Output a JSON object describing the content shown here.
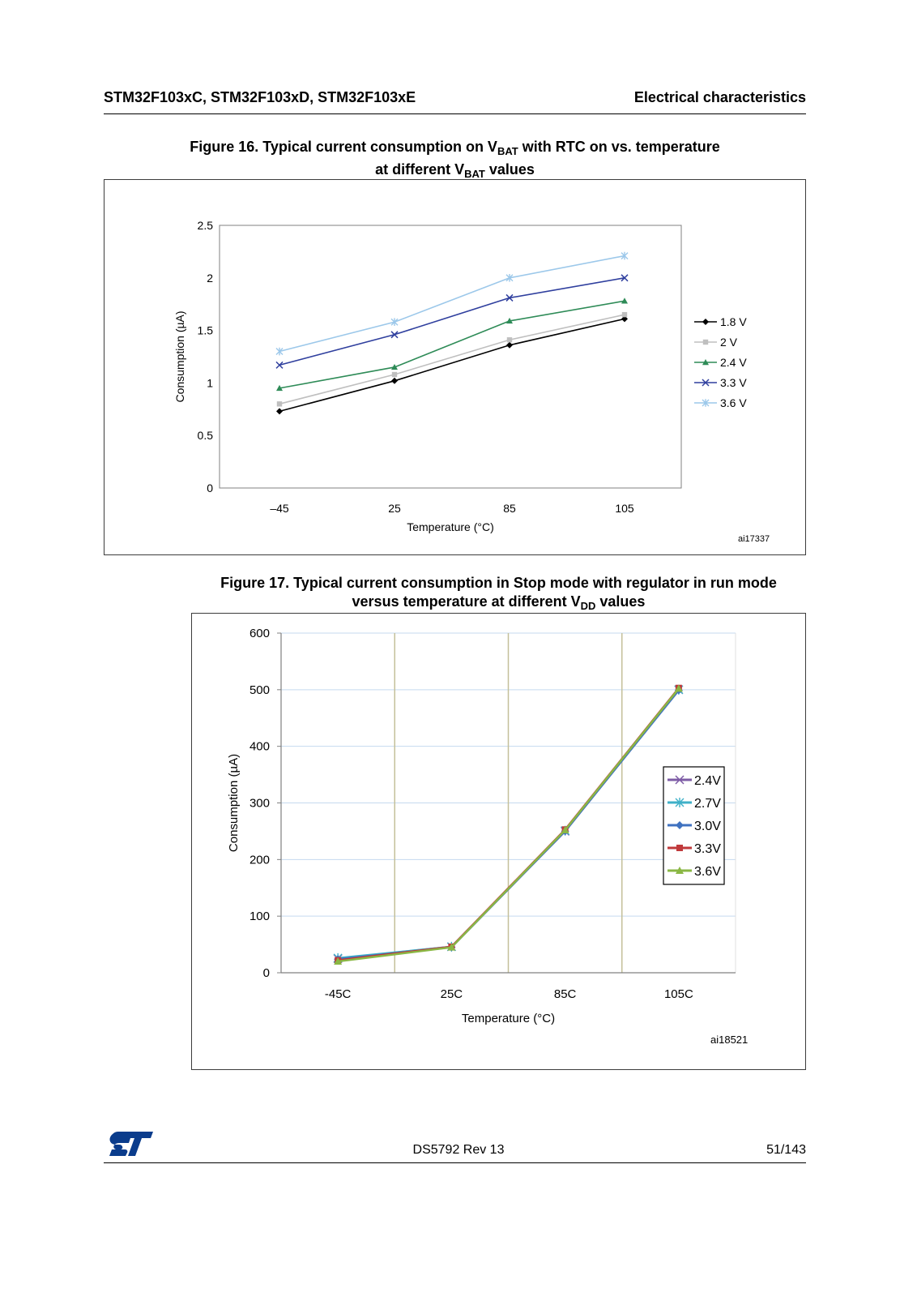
{
  "header": {
    "left": "STM32F103xC, STM32F103xD, STM32F103xE",
    "right": "Electrical characteristics"
  },
  "fig16": {
    "title_line1_a": "Figure 16. Typical current consumption on V",
    "title_line1_sub": "BAT",
    "title_line1_b": " with RTC on vs. temperature",
    "title_line2_a": "at different V",
    "title_line2_sub": "BAT",
    "title_line2_b": " values",
    "ref": "ai17337"
  },
  "fig17": {
    "title_line1": "Figure 17. Typical current consumption in Stop mode with regulator in run mode",
    "title_line2_a": "versus temperature at different V",
    "title_line2_sub": "DD",
    "title_line2_b": " values",
    "ref": "ai18521"
  },
  "chart_data": [
    {
      "type": "line",
      "xlabel": "Temperature (°C)",
      "ylabel": "Consumption (µA)",
      "categories": [
        "–45",
        "25",
        "85",
        "105"
      ],
      "ylim": [
        0,
        2.5
      ],
      "yticks": [
        "0",
        "0.5",
        "1",
        "1.5",
        "2",
        "2.5"
      ],
      "grid": false,
      "legend": "right",
      "series": [
        {
          "name": "1.8 V",
          "values": [
            0.73,
            1.02,
            1.36,
            1.61
          ],
          "color": "#000000",
          "marker": "diamond"
        },
        {
          "name": "2 V",
          "values": [
            0.8,
            1.08,
            1.41,
            1.65
          ],
          "color": "#bfbfbf",
          "marker": "square"
        },
        {
          "name": "2.4 V",
          "values": [
            0.95,
            1.15,
            1.59,
            1.78
          ],
          "color": "#2e8b57",
          "marker": "triangle"
        },
        {
          "name": "3.3 V",
          "values": [
            1.17,
            1.46,
            1.81,
            2.0
          ],
          "color": "#2f3f9e",
          "marker": "x"
        },
        {
          "name": "3.6 V",
          "values": [
            1.3,
            1.58,
            2.0,
            2.21
          ],
          "color": "#9cc8ea",
          "marker": "star"
        }
      ]
    },
    {
      "type": "line",
      "xlabel": "Temperature (°C)",
      "ylabel": "Consumption (µA)",
      "categories": [
        "-45C",
        "25C",
        "85C",
        "105C"
      ],
      "ylim": [
        0,
        600
      ],
      "yticks": [
        "0",
        "100",
        "200",
        "300",
        "400",
        "500",
        "600"
      ],
      "grid": true,
      "legend": "right",
      "series": [
        {
          "name": "2.4V",
          "values": [
            25,
            46,
            250,
            500
          ],
          "color": "#7e5ca6",
          "marker": "x"
        },
        {
          "name": "2.7V",
          "values": [
            26,
            46,
            251,
            500
          ],
          "color": "#3fb0c8",
          "marker": "star"
        },
        {
          "name": "3.0V",
          "values": [
            24,
            45,
            250,
            499
          ],
          "color": "#3f72c0",
          "marker": "diamond"
        },
        {
          "name": "3.3V",
          "values": [
            22,
            46,
            253,
            503
          ],
          "color": "#c0393b",
          "marker": "square"
        },
        {
          "name": "3.6V",
          "values": [
            20,
            45,
            252,
            502
          ],
          "color": "#8ab744",
          "marker": "triangle"
        }
      ]
    }
  ],
  "footer": {
    "doc": "DS5792 Rev 13",
    "page": "51/143"
  }
}
